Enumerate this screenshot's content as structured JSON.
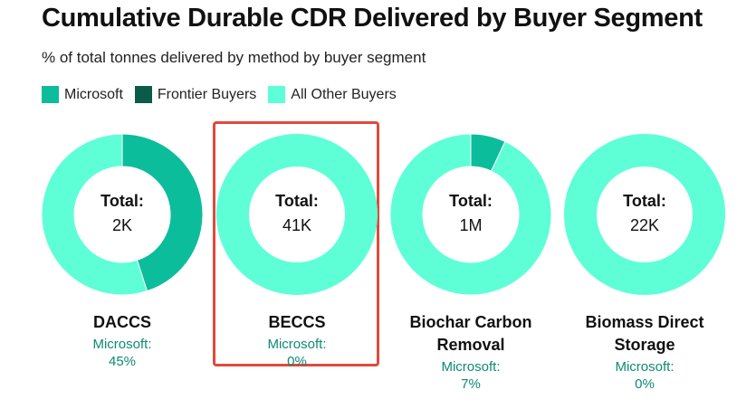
{
  "chart_data": {
    "type": "pie",
    "title": "Cumulative Durable CDR Delivered by Buyer Segment",
    "subtitle": "% of total tonnes delivered by method by buyer segment",
    "legend": {
      "placement": "top-left",
      "entries": [
        {
          "name": "Microsoft",
          "color": "#0cbd9b"
        },
        {
          "name": "Frontier Buyers",
          "color": "#0b5c46"
        },
        {
          "name": "All Other Buyers",
          "color": "#5effd6"
        }
      ]
    },
    "total_label": "Total:",
    "microsoft_label": "Microsoft:",
    "charts": [
      {
        "method": "DACCS",
        "total": "2K",
        "microsoft_share_text": "45%",
        "slices": [
          {
            "name": "Microsoft",
            "value": 45
          },
          {
            "name": "Frontier Buyers",
            "value": 0
          },
          {
            "name": "All Other Buyers",
            "value": 55
          }
        ]
      },
      {
        "method": "BECCS",
        "total": "41K",
        "microsoft_share_text": "0%",
        "highlighted": true,
        "slices": [
          {
            "name": "Microsoft",
            "value": 0
          },
          {
            "name": "Frontier Buyers",
            "value": 0
          },
          {
            "name": "All Other Buyers",
            "value": 100
          }
        ]
      },
      {
        "method": "Biochar Carbon Removal",
        "total": "1M",
        "microsoft_share_text": "7%",
        "slices": [
          {
            "name": "Microsoft",
            "value": 7
          },
          {
            "name": "Frontier Buyers",
            "value": 0
          },
          {
            "name": "All Other Buyers",
            "value": 93
          }
        ]
      },
      {
        "method": "Biomass Direct Storage",
        "total": "22K",
        "microsoft_share_text": "0%",
        "slices": [
          {
            "name": "Microsoft",
            "value": 0
          },
          {
            "name": "Frontier Buyers",
            "value": 0
          },
          {
            "name": "All Other Buyers",
            "value": 100
          }
        ]
      }
    ]
  }
}
